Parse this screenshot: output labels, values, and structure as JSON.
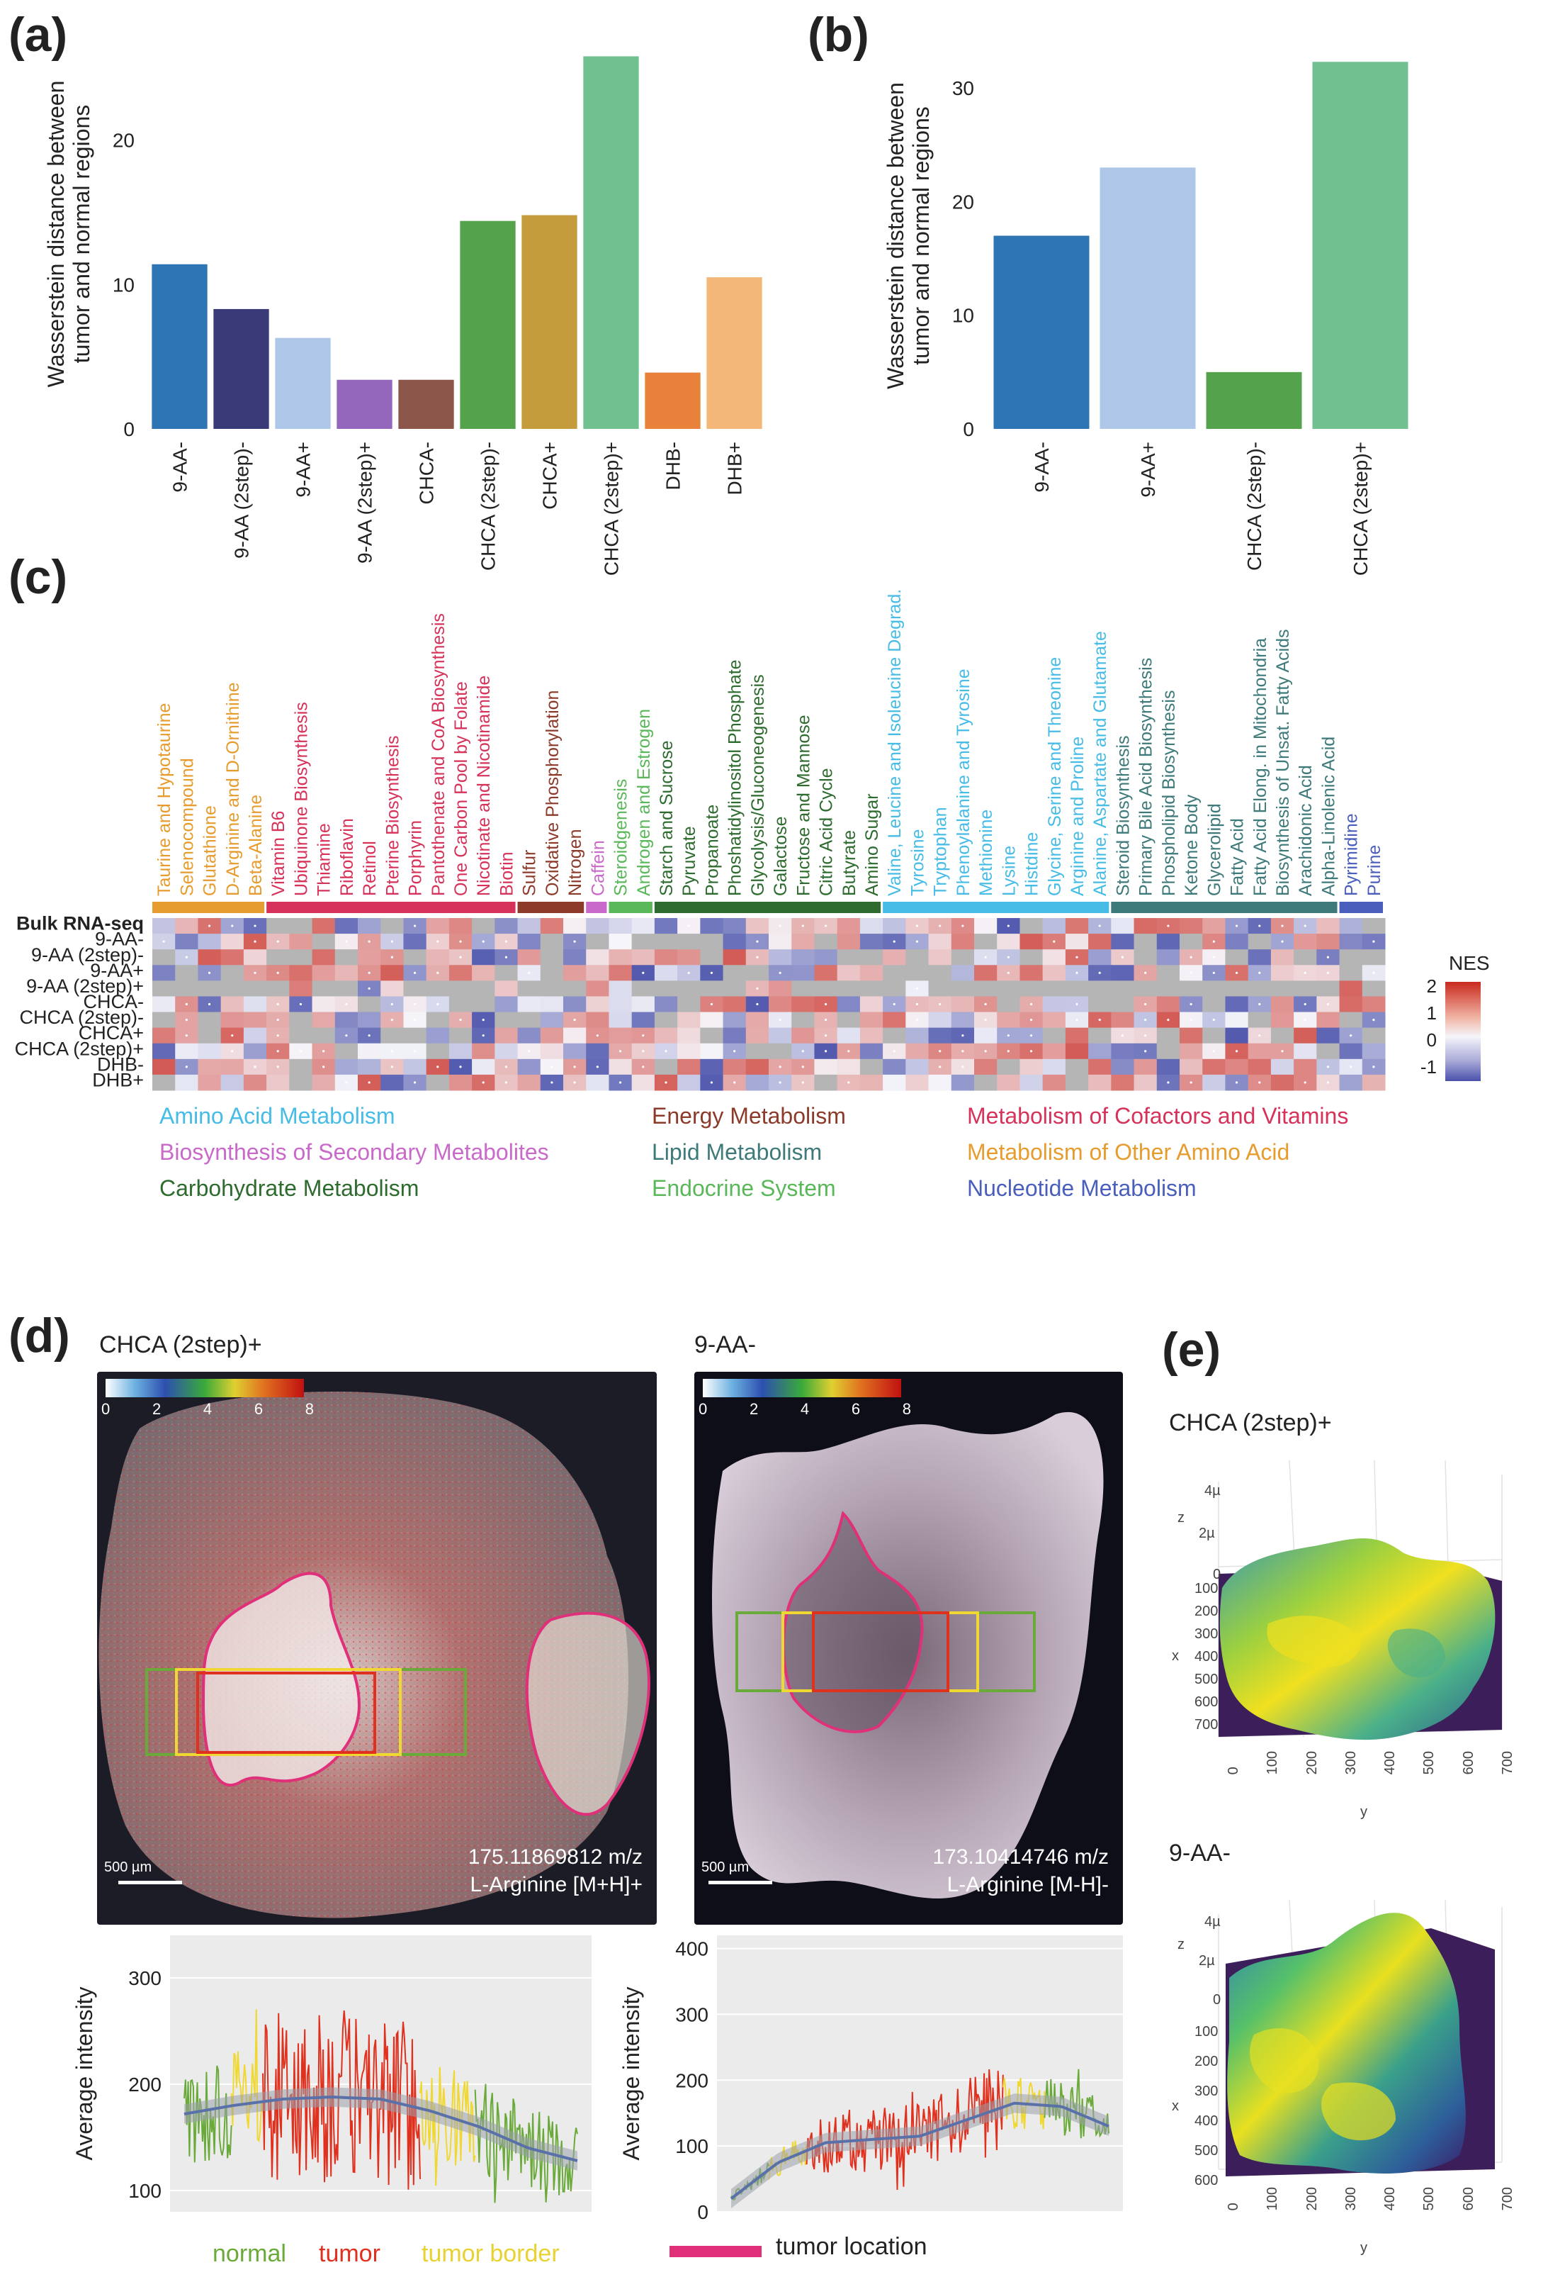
{
  "panels": {
    "a": "(a)",
    "b": "(b)",
    "c": "(c)",
    "d": "(d)",
    "e": "(e)"
  },
  "colors": {
    "blue": "#2e75b5",
    "navy": "#3a3a78",
    "light_blue": "#aec7e8",
    "purple": "#9467bd",
    "brown": "#8c564b",
    "green": "#54a24b",
    "olive": "#c49c3b",
    "mint": "#70c090",
    "orange": "#e8823a",
    "peach": "#f3b77a",
    "amino": "#46bce7",
    "secondary": "#c969c9",
    "carb": "#2e6b2e",
    "energy": "#8c3b2a",
    "lipid": "#3f7a7a",
    "endocrine": "#5ab85a",
    "cofactor": "#d6325a",
    "other_aa": "#e69c2e",
    "nucleotide": "#4a5fbb",
    "normal": "#6aaa3a",
    "tumor": "#e0301e",
    "border": "#f0d832",
    "tumor_loc": "#e0307a"
  },
  "chart_data": [
    {
      "id": "a",
      "type": "bar",
      "ylabel": "Wasserstein distance between tumor and normal regions",
      "ylim": [
        0,
        27
      ],
      "yticks": [
        0,
        10,
        20
      ],
      "categories": [
        "9-AA-",
        "9-AA (2step)-",
        "9-AA+",
        "9-AA (2step)+",
        "CHCA-",
        "CHCA (2step)-",
        "CHCA+",
        "CHCA (2step)+",
        "DHB-",
        "DHB+"
      ],
      "values": [
        11.4,
        8.3,
        6.3,
        3.4,
        3.4,
        14.4,
        14.8,
        25.8,
        3.9,
        10.5
      ]
    },
    {
      "id": "b",
      "type": "bar",
      "ylabel": "Wasserstein distance between tumor and normal regions",
      "ylim": [
        0,
        34
      ],
      "yticks": [
        0,
        10,
        20,
        30
      ],
      "categories": [
        "9-AA-",
        "9-AA+",
        "CHCA (2step)-",
        "CHCA (2step)+"
      ],
      "values": [
        17.0,
        23.0,
        5.0,
        32.3
      ]
    },
    {
      "id": "c",
      "type": "heatmap",
      "legend_title": "NES",
      "scale_ticks": [
        "2",
        "1",
        "0",
        "-1"
      ],
      "rows": [
        "Bulk RNA-seq",
        "9-AA-",
        "9-AA (2step)-",
        "9-AA+",
        "9-AA (2step)+",
        "CHCA-",
        "CHCA (2step)-",
        "CHCA+",
        "CHCA (2step)+",
        "DHB-",
        "DHB+"
      ],
      "columns": [
        {
          "name": "Taurine and Hypotaurine",
          "group": "other_aa"
        },
        {
          "name": "Selenocompound",
          "group": "other_aa"
        },
        {
          "name": "Glutathione",
          "group": "other_aa"
        },
        {
          "name": "D-Arginine and D-Ornithine",
          "group": "other_aa"
        },
        {
          "name": "Beta-Alanine",
          "group": "other_aa"
        },
        {
          "name": "Vitamin B6",
          "group": "cofactor"
        },
        {
          "name": "Ubiquinone Biosynthesis",
          "group": "cofactor"
        },
        {
          "name": "Thiamine",
          "group": "cofactor"
        },
        {
          "name": "Riboflavin",
          "group": "cofactor"
        },
        {
          "name": "Retinol",
          "group": "cofactor"
        },
        {
          "name": "Pterine Biosynthesis",
          "group": "cofactor"
        },
        {
          "name": "Porphyrin",
          "group": "cofactor"
        },
        {
          "name": "Pantothenate and CoA Biosynthesis",
          "group": "cofactor"
        },
        {
          "name": "One Carbon Pool by Folate",
          "group": "cofactor"
        },
        {
          "name": "Nicotinate and Nicotinamide",
          "group": "cofactor"
        },
        {
          "name": "Biotin",
          "group": "cofactor"
        },
        {
          "name": "Sulfur",
          "group": "energy"
        },
        {
          "name": "Oxidative Phosphorylation",
          "group": "energy"
        },
        {
          "name": "Nitrogen",
          "group": "energy"
        },
        {
          "name": "Caffein",
          "group": "secondary"
        },
        {
          "name": "Steroidgenesis",
          "group": "endocrine"
        },
        {
          "name": "Androgen and Estrogen",
          "group": "endocrine"
        },
        {
          "name": "Starch and Sucrose",
          "group": "carb"
        },
        {
          "name": "Pyruvate",
          "group": "carb"
        },
        {
          "name": "Propanoate",
          "group": "carb"
        },
        {
          "name": "Phoshatidylinositol Phosphate",
          "group": "carb"
        },
        {
          "name": "Glycolysis/Gluconeogenesis",
          "group": "carb"
        },
        {
          "name": "Galactose",
          "group": "carb"
        },
        {
          "name": "Fructose and Mannose",
          "group": "carb"
        },
        {
          "name": "Citric Acid Cycle",
          "group": "carb"
        },
        {
          "name": "Butyrate",
          "group": "carb"
        },
        {
          "name": "Amino Sugar",
          "group": "carb"
        },
        {
          "name": "Valine, Leucine and Isoleucine Degrad.",
          "group": "amino"
        },
        {
          "name": "Tyrosine",
          "group": "amino"
        },
        {
          "name": "Tryptophan",
          "group": "amino"
        },
        {
          "name": "Phenoylalanine and Tyrosine",
          "group": "amino"
        },
        {
          "name": "Methionine",
          "group": "amino"
        },
        {
          "name": "Lysine",
          "group": "amino"
        },
        {
          "name": "Histdine",
          "group": "amino"
        },
        {
          "name": "Glycine, Serine and Threonine",
          "group": "amino"
        },
        {
          "name": "Arginine and Proline",
          "group": "amino"
        },
        {
          "name": "Alanine, Aspartate and Glutamate",
          "group": "amino"
        },
        {
          "name": "Steroid Biosynthesis",
          "group": "lipid"
        },
        {
          "name": "Primary Bile Acid Biosynthesis",
          "group": "lipid"
        },
        {
          "name": "Phospholipid Biosynthesis",
          "group": "lipid"
        },
        {
          "name": "Ketone Body",
          "group": "lipid"
        },
        {
          "name": "Glycerolipid",
          "group": "lipid"
        },
        {
          "name": "Fatty Acid",
          "group": "lipid"
        },
        {
          "name": "Fatty Acid Elong. in Mitochondria",
          "group": "lipid"
        },
        {
          "name": "Biosynthesis of Unsat. Fatty Acids",
          "group": "lipid"
        },
        {
          "name": "Arachidonic Acid",
          "group": "lipid"
        },
        {
          "name": "Alpha-Linolenic Acid",
          "group": "lipid"
        },
        {
          "name": "Pyrimidine",
          "group": "nucleotide"
        },
        {
          "name": "Purine",
          "group": "nucleotide"
        }
      ],
      "category_legend": [
        {
          "label": "Amino Acid Metabolism",
          "group": "amino"
        },
        {
          "label": "Energy Metabolism",
          "group": "energy"
        },
        {
          "label": "Metabolism of Cofactors and Vitamins",
          "group": "cofactor"
        },
        {
          "label": "Biosynthesis of Secondary Metabolites",
          "group": "secondary"
        },
        {
          "label": "Lipid Metabolism",
          "group": "lipid"
        },
        {
          "label": "Metabolism of Other Amino Acid",
          "group": "other_aa"
        },
        {
          "label": "Carbohydrate Metabolism",
          "group": "carb"
        },
        {
          "label": "Endocrine System",
          "group": "endocrine"
        },
        {
          "label": "Nucleotide Metabolism",
          "group": "nucleotide"
        }
      ]
    },
    {
      "id": "d-left-line",
      "type": "line",
      "ylabel": "Average intensity",
      "ylim": [
        80,
        340
      ],
      "yticks": [
        100,
        200,
        300
      ],
      "segments": [
        {
          "region": "normal",
          "range": [
            0,
            0.12
          ]
        },
        {
          "region": "tumor border",
          "range": [
            0.12,
            0.2
          ]
        },
        {
          "region": "tumor",
          "range": [
            0.2,
            0.6
          ]
        },
        {
          "region": "tumor border",
          "range": [
            0.6,
            0.74
          ]
        },
        {
          "region": "normal",
          "range": [
            0.74,
            1.0
          ]
        }
      ],
      "trend": [
        172,
        180,
        186,
        188,
        186,
        175,
        160,
        140,
        128
      ]
    },
    {
      "id": "d-right-line",
      "type": "line",
      "ylabel": "Average intensity",
      "ylim": [
        0,
        420
      ],
      "yticks": [
        0,
        100,
        200,
        300,
        400
      ],
      "segments": [
        {
          "region": "normal",
          "range": [
            0,
            0.1
          ]
        },
        {
          "region": "tumor border",
          "range": [
            0.1,
            0.2
          ]
        },
        {
          "region": "tumor",
          "range": [
            0.2,
            0.72
          ]
        },
        {
          "region": "tumor border",
          "range": [
            0.72,
            0.83
          ]
        },
        {
          "region": "normal",
          "range": [
            0.83,
            1.0
          ]
        }
      ],
      "trend": [
        20,
        75,
        105,
        110,
        115,
        140,
        165,
        160,
        130
      ]
    }
  ],
  "panel_d": {
    "left_title": "CHCA (2step)+",
    "right_title": "9-AA-",
    "colorbar_ticks": [
      "0",
      "2",
      "4",
      "6",
      "8"
    ],
    "left_mz": "175.11869812 m/z",
    "left_compound": "L-Arginine [M+H]+",
    "right_mz": "173.10414746 m/z",
    "right_compound": "L-Arginine [M-H]-",
    "scale_bar": "500 µm",
    "legend": {
      "normal": "normal",
      "tumor": "tumor",
      "tumor_border": "tumor border",
      "tumor_location": "tumor location"
    }
  },
  "panel_e": {
    "top_title": "CHCA (2step)+",
    "bottom_title": "9-AA-",
    "top_z_ticks": [
      "4µ",
      "2µ",
      "0"
    ],
    "top_x_ticks": [
      "100",
      "200",
      "300",
      "400",
      "500",
      "600",
      "700"
    ],
    "top_y_ticks": [
      "0",
      "100",
      "200",
      "300",
      "400",
      "500",
      "600",
      "700"
    ],
    "bottom_z_ticks": [
      "4µ",
      "2µ",
      "0"
    ],
    "bottom_x_ticks": [
      "100",
      "200",
      "300",
      "400",
      "500",
      "600"
    ],
    "bottom_y_ticks": [
      "0",
      "100",
      "200",
      "300",
      "400",
      "500",
      "600",
      "700"
    ],
    "axis_z": "z",
    "axis_x": "x",
    "axis_y": "y"
  }
}
